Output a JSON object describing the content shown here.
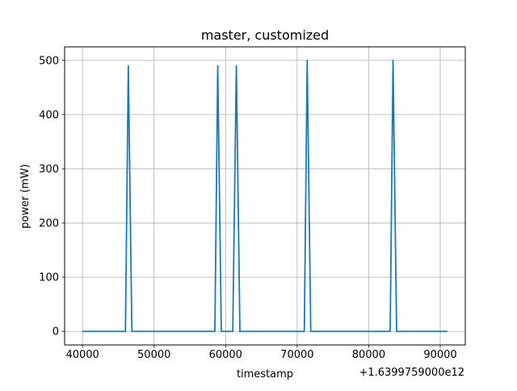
{
  "chart_data": {
    "type": "line",
    "title": "master, customized",
    "xlabel": "timestamp",
    "ylabel": "power (mW)",
    "x_offset_label": "+1.6399759000e12",
    "xlim": [
      37500,
      93500
    ],
    "ylim": [
      -25,
      525
    ],
    "x_ticks": [
      40000,
      50000,
      60000,
      70000,
      80000,
      90000
    ],
    "y_ticks": [
      0,
      100,
      200,
      300,
      400,
      500
    ],
    "grid": true,
    "line_color": "#1f77b4",
    "series": [
      {
        "x": [
          40000,
          46000,
          46400,
          46900,
          58500,
          58900,
          59400,
          61000,
          61500,
          62000,
          71000,
          71400,
          71900,
          83000,
          83400,
          83900,
          91000
        ],
        "y": [
          0,
          0,
          490,
          0,
          0,
          490,
          0,
          0,
          490,
          0,
          0,
          500,
          0,
          0,
          500,
          0,
          0
        ]
      }
    ]
  }
}
